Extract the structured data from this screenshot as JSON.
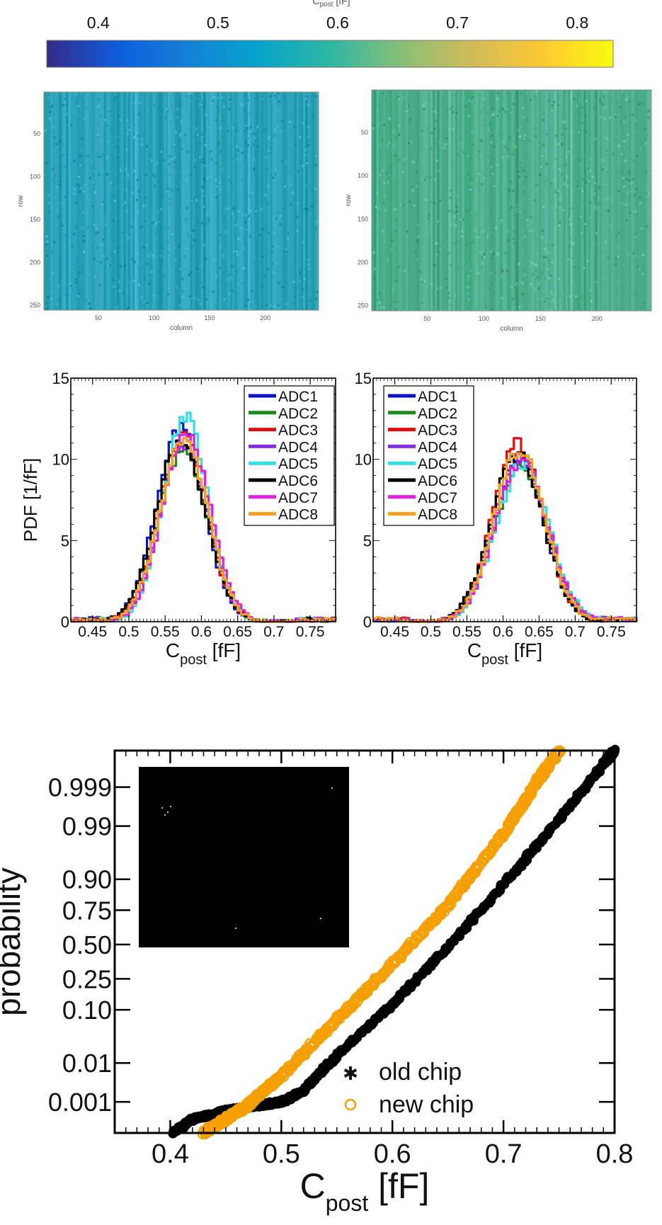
{
  "colorbar": {
    "title": "C_post [fF]",
    "title_main": "C",
    "title_sub": "post",
    "title_unit": " [fF]",
    "ticks": [
      0.4,
      0.5,
      0.6,
      0.7,
      0.8
    ],
    "tick_labels": [
      "0.4",
      "0.5",
      "0.6",
      "0.7",
      "0.8"
    ],
    "range": [
      0.357,
      0.83
    ],
    "colors": [
      "#352a87",
      "#0f5cdd",
      "#1481d6",
      "#06a4ca",
      "#2eb7a4",
      "#87bf77",
      "#d1bb59",
      "#fec832",
      "#f9fb0e"
    ]
  },
  "chart_data": [
    {
      "type": "heatmap",
      "panel": "old-chip-map",
      "xlabel": "column",
      "ylabel": "row",
      "x_ticks": [
        "50",
        "100",
        "150",
        "200"
      ],
      "y_ticks": [
        "50",
        "100",
        "150",
        "200",
        "250"
      ],
      "xlim": [
        1,
        248
      ],
      "ylim": [
        1,
        256
      ],
      "mean_value": 0.57,
      "base_color": "#2aa2b8"
    },
    {
      "type": "heatmap",
      "panel": "new-chip-map",
      "xlabel": "column",
      "ylabel": "row",
      "x_ticks": [
        "50",
        "100",
        "150",
        "200"
      ],
      "y_ticks": [
        "50",
        "100",
        "150",
        "200",
        "250"
      ],
      "xlim": [
        1,
        248
      ],
      "ylim": [
        1,
        256
      ],
      "mean_value": 0.62,
      "base_color": "#4fb08f"
    },
    {
      "type": "line",
      "panel": "old-chip-histogram",
      "xlabel_main": "C",
      "xlabel_sub": "post",
      "xlabel_unit": " [fF]",
      "ylabel": "PDF [1/fF]",
      "xlim": [
        0.42,
        0.785
      ],
      "ylim": [
        0,
        15
      ],
      "x_tick_labels": [
        "0.45",
        "0.5",
        "0.55",
        "0.6",
        "0.65",
        "0.7",
        "0.75"
      ],
      "x_ticks": [
        0.45,
        0.5,
        0.55,
        0.6,
        0.65,
        0.7,
        0.75
      ],
      "y_ticks": [
        0,
        5,
        10,
        15
      ],
      "legend": "top-right",
      "series": [
        {
          "name": "ADC1",
          "color": "#0a14c8",
          "mu": 0.571,
          "sigma": 0.033,
          "peak": 11.9
        },
        {
          "name": "ADC2",
          "color": "#1a8a1a",
          "mu": 0.575,
          "sigma": 0.034,
          "peak": 10.6
        },
        {
          "name": "ADC3",
          "color": "#e01010",
          "mu": 0.574,
          "sigma": 0.033,
          "peak": 11.4
        },
        {
          "name": "ADC4",
          "color": "#8a2be2",
          "mu": 0.576,
          "sigma": 0.033,
          "peak": 11.0
        },
        {
          "name": "ADC5",
          "color": "#30e0e8",
          "mu": 0.578,
          "sigma": 0.031,
          "peak": 12.6
        },
        {
          "name": "ADC6",
          "color": "#000000",
          "mu": 0.572,
          "sigma": 0.034,
          "peak": 11.2
        },
        {
          "name": "ADC7",
          "color": "#e020e0",
          "mu": 0.579,
          "sigma": 0.033,
          "peak": 11.6
        },
        {
          "name": "ADC8",
          "color": "#f5a020",
          "mu": 0.576,
          "sigma": 0.033,
          "peak": 11.3
        }
      ]
    },
    {
      "type": "line",
      "panel": "new-chip-histogram",
      "xlabel_main": "C",
      "xlabel_sub": "post",
      "xlabel_unit": " [fF]",
      "ylabel": "",
      "xlim": [
        0.42,
        0.785
      ],
      "ylim": [
        0,
        15
      ],
      "x_tick_labels": [
        "0.45",
        "0.5",
        "0.55",
        "0.6",
        "0.65",
        "0.7",
        "0.75"
      ],
      "x_ticks": [
        0.45,
        0.5,
        0.55,
        0.6,
        0.65,
        0.7,
        0.75
      ],
      "y_ticks": [
        0,
        5,
        10,
        15
      ],
      "legend": "top-left",
      "series": [
        {
          "name": "ADC1",
          "color": "#0a14c8",
          "mu": 0.622,
          "sigma": 0.036,
          "peak": 10.0
        },
        {
          "name": "ADC2",
          "color": "#1a8a1a",
          "mu": 0.625,
          "sigma": 0.037,
          "peak": 9.6
        },
        {
          "name": "ADC3",
          "color": "#e01010",
          "mu": 0.621,
          "sigma": 0.035,
          "peak": 11.0
        },
        {
          "name": "ADC4",
          "color": "#8a2be2",
          "mu": 0.624,
          "sigma": 0.036,
          "peak": 10.1
        },
        {
          "name": "ADC5",
          "color": "#30e0e8",
          "mu": 0.627,
          "sigma": 0.037,
          "peak": 9.6
        },
        {
          "name": "ADC6",
          "color": "#000000",
          "mu": 0.62,
          "sigma": 0.036,
          "peak": 10.3
        },
        {
          "name": "ADC7",
          "color": "#e020e0",
          "mu": 0.626,
          "sigma": 0.036,
          "peak": 10.0
        },
        {
          "name": "ADC8",
          "color": "#f5a020",
          "mu": 0.623,
          "sigma": 0.035,
          "peak": 10.6
        }
      ]
    },
    {
      "type": "scatter",
      "panel": "normal-probability-plot",
      "xlabel_main": "C",
      "xlabel_sub": "post",
      "xlabel_unit": " [fF]",
      "ylabel": "probability",
      "xlim": [
        0.35,
        0.8
      ],
      "x_ticks": [
        0.4,
        0.5,
        0.6,
        0.7,
        0.8
      ],
      "x_tick_labels": [
        "0.4",
        "0.5",
        "0.6",
        "0.7",
        "0.8"
      ],
      "y_scale": "normal-probability",
      "y_ticks": [
        0.001,
        0.01,
        0.1,
        0.25,
        0.5,
        0.75,
        0.9,
        0.99,
        0.999
      ],
      "y_tick_labels": [
        "0.001",
        "0.01",
        "0.10",
        "0.25",
        "0.50",
        "0.75",
        "0.90",
        "0.99",
        "0.999"
      ],
      "ylim": [
        0.000108,
        0.99993
      ],
      "legend": "bottom-right",
      "series": [
        {
          "name": "old chip",
          "marker": "asterisk",
          "color": "#000000",
          "points": [
            [
              0.403,
              0.00011
            ],
            [
              0.42,
              0.0003
            ],
            [
              0.45,
              0.00055
            ],
            [
              0.48,
              0.0008
            ],
            [
              0.5,
              0.001
            ],
            [
              0.52,
              0.002
            ],
            [
              0.55,
              0.015
            ],
            [
              0.6,
              0.12
            ],
            [
              0.65,
              0.48
            ],
            [
              0.7,
              0.88
            ],
            [
              0.75,
              0.993
            ],
            [
              0.79,
              0.9998
            ],
            [
              0.8,
              0.99993
            ]
          ]
        },
        {
          "name": "new chip",
          "marker": "circle",
          "color": "#f5a000",
          "points": [
            [
              0.43,
              0.00011
            ],
            [
              0.45,
              0.0003
            ],
            [
              0.47,
              0.0008
            ],
            [
              0.5,
              0.005
            ],
            [
              0.55,
              0.07
            ],
            [
              0.6,
              0.35
            ],
            [
              0.65,
              0.78
            ],
            [
              0.7,
              0.985
            ],
            [
              0.73,
              0.9993
            ],
            [
              0.75,
              0.99993
            ]
          ]
        }
      ]
    }
  ]
}
